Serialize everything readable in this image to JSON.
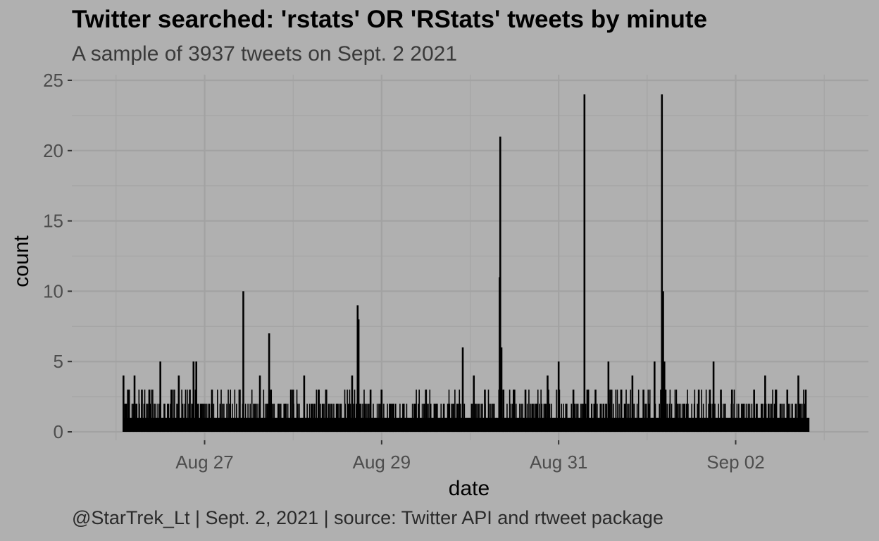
{
  "chart_data": {
    "type": "line",
    "title": "Twitter searched: 'rstats' OR 'RStats' tweets by minute",
    "subtitle": "A sample of 3937 tweets on Sept. 2 2021",
    "caption": "@StarTrek_Lt  | Sept. 2, 2021 | source: Twitter API and rtweet package",
    "xlabel": "date",
    "ylabel": "count",
    "xlim": [
      "2021-08-25T12:00",
      "2021-09-03T12:00"
    ],
    "ylim": [
      -0.6,
      25.4
    ],
    "x_ticks": [
      {
        "label": "Aug 27",
        "date": "2021-08-27"
      },
      {
        "label": "Aug 29",
        "date": "2021-08-29"
      },
      {
        "label": "Aug 31",
        "date": "2021-08-31"
      },
      {
        "label": "Sep 02",
        "date": "2021-09-02"
      }
    ],
    "y_ticks": [
      0,
      5,
      10,
      15,
      20,
      25
    ],
    "grid": true,
    "line_color": "#000000",
    "panel_color": "#b0b0b0",
    "grid_color": "#a2a2a2",
    "series": [
      {
        "points": [
          [
            "2021-08-26T02:00",
            4
          ],
          [
            "2021-08-26T02:45",
            2
          ],
          [
            "2021-08-26T03:30",
            3
          ],
          [
            "2021-08-26T05:00",
            4
          ],
          [
            "2021-08-26T07:00",
            3
          ],
          [
            "2021-08-26T09:00",
            3
          ],
          [
            "2021-08-26T12:00",
            2
          ],
          [
            "2021-08-26T15:00",
            3
          ],
          [
            "2021-08-26T17:00",
            4
          ],
          [
            "2021-08-26T20:00",
            3
          ],
          [
            "2021-08-26T23:00",
            2
          ],
          [
            "2021-08-27T02:00",
            3
          ],
          [
            "2021-08-26T12:00",
            5
          ],
          [
            "2021-08-27T15:00",
            4
          ],
          [
            "2021-08-27T17:00",
            2
          ],
          [
            "2021-08-27T18:00",
            3
          ],
          [
            "2021-08-27T20:00",
            2
          ],
          [
            "2021-08-27T22:00",
            2
          ],
          [
            "2021-08-28T00:00",
            3
          ],
          [
            "2021-08-28T03:00",
            4
          ],
          [
            "2021-08-28T05:00",
            2
          ],
          [
            "2021-08-28T09:00",
            3
          ],
          [
            "2021-08-28T12:00",
            2
          ],
          [
            "2021-08-28T15:00",
            2
          ],
          [
            "2021-08-28T18:00",
            2
          ],
          [
            "2021-08-28T21:00",
            3
          ],
          [
            "2021-08-29T00:00",
            3
          ],
          [
            "2021-08-29T03:00",
            2
          ],
          [
            "2021-08-29T06:00",
            2
          ],
          [
            "2021-08-29T09:00",
            2
          ],
          [
            "2021-08-29T12:00",
            3
          ],
          [
            "2021-08-29T15:00",
            2
          ],
          [
            "2021-08-29T18:00",
            2
          ],
          [
            "2021-08-29T21:00",
            2
          ],
          [
            "2021-08-30T01:00",
            4
          ],
          [
            "2021-08-30T04:00",
            3
          ],
          [
            "2021-08-30T09:00",
            3
          ],
          [
            "2021-08-30T12:00",
            3
          ],
          [
            "2021-08-30T15:00",
            3
          ],
          [
            "2021-08-30T18:00",
            2
          ],
          [
            "2021-08-30T21:00",
            4
          ],
          [
            "2021-08-31T00:00",
            5
          ],
          [
            "2021-08-31T04:00",
            3
          ],
          [
            "2021-08-31T08:00",
            3
          ],
          [
            "2021-08-31T10:00",
            3
          ],
          [
            "2021-08-31T14:00",
            3
          ],
          [
            "2021-08-31T17:00",
            3
          ],
          [
            "2021-08-31T20:00",
            4
          ],
          [
            "2021-08-31T23:00",
            3
          ],
          [
            "2021-09-01T02:00",
            5
          ],
          [
            "2021-09-01T05:00",
            3
          ],
          [
            "2021-09-01T08:00",
            2
          ],
          [
            "2021-09-01T11:00",
            2
          ],
          [
            "2021-09-01T14:00",
            3
          ],
          [
            "2021-09-01T17:00",
            3
          ],
          [
            "2021-09-01T20:00",
            3
          ],
          [
            "2021-09-01T23:00",
            3
          ],
          [
            "2021-09-02T02:00",
            2
          ],
          [
            "2021-09-02T05:00",
            3
          ],
          [
            "2021-09-02T08:00",
            4
          ],
          [
            "2021-09-02T11:00",
            3
          ],
          [
            "2021-09-02T14:00",
            3
          ],
          [
            "2021-09-02T17:00",
            4
          ],
          [
            "2021-09-02T19:00",
            3
          ],
          [
            "2021-08-26T21:00",
            5
          ],
          [
            "2021-08-26T21:45",
            5
          ],
          [
            "2021-08-27T10:30",
            10
          ],
          [
            "2021-08-27T17:30",
            7
          ],
          [
            "2021-08-28T16:00",
            4
          ],
          [
            "2021-08-28T17:30",
            9
          ],
          [
            "2021-08-28T17:45",
            8
          ],
          [
            "2021-08-29T22:00",
            6
          ],
          [
            "2021-08-30T08:10",
            21
          ],
          [
            "2021-08-30T08:00",
            11
          ],
          [
            "2021-08-30T08:30",
            6
          ],
          [
            "2021-08-31T07:00",
            24
          ],
          [
            "2021-08-31T13:30",
            5
          ],
          [
            "2021-09-01T04:00",
            24
          ],
          [
            "2021-09-01T04:20",
            10
          ],
          [
            "2021-09-01T04:40",
            5
          ],
          [
            "2021-09-01T18:00",
            5
          ]
        ]
      }
    ]
  }
}
